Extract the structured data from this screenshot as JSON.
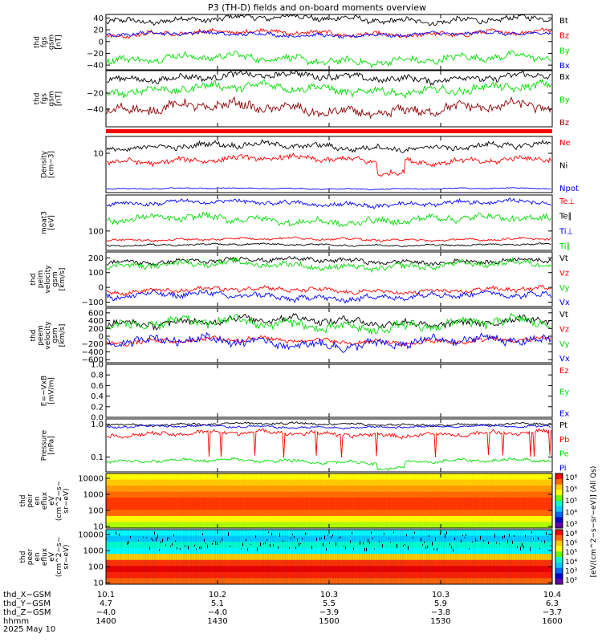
{
  "title": "P3 (TH-D) fields and on-board moments overview",
  "colors": {
    "black": "#000000",
    "red": "#ff0000",
    "green": "#00dd00",
    "blue": "#0000ff",
    "darkred": "#8b0000"
  },
  "chart_data": [
    {
      "type": "line",
      "ylabel": [
        "thd",
        "fgs",
        "gsm",
        "[nT]"
      ],
      "ylim": [
        -48,
        46
      ],
      "ticks": [
        "40",
        "20",
        "0",
        "−20",
        "−40"
      ],
      "tick_values": [
        40,
        20,
        0,
        -20,
        -40
      ],
      "series": [
        {
          "name": "Bt",
          "color": "#000000",
          "level": 38,
          "noise": 5
        },
        {
          "name": "Bz",
          "color": "#ff0000",
          "level": 14,
          "noise": 4
        },
        {
          "name": "By",
          "color": "#00dd00",
          "level": -30,
          "noise": 6
        },
        {
          "name": "Bx",
          "color": "#0000ff",
          "level": 12,
          "noise": 3
        }
      ]
    },
    {
      "type": "line",
      "ylabel": [
        "thd",
        "fgs",
        "gsm",
        "[nT]"
      ],
      "ylim": [
        -62,
        8
      ],
      "ticks": [
        "−20",
        "−40"
      ],
      "tick_values": [
        -20,
        -40
      ],
      "series": [
        {
          "name": "Bx",
          "color": "#000000",
          "level": 0,
          "noise": 4
        },
        {
          "name": "By",
          "color": "#00dd00",
          "level": -15,
          "noise": 5
        },
        {
          "name": "Bz",
          "color": "#8b0000",
          "level": -40,
          "noise": 6
        }
      ]
    },
    {
      "type": "line",
      "ylabel": [
        "Density",
        "[cm−3]"
      ],
      "ylim": [
        0,
        1
      ],
      "ticks": [
        "10"
      ],
      "tick_values": [
        0.7
      ],
      "series": [
        {
          "name": "Ne",
          "color": "#ff0000",
          "level": 0.58,
          "noise": 0.05
        },
        {
          "name": "Ni",
          "color": "#000000",
          "level": 0.82,
          "noise": 0.05
        },
        {
          "name": "Npot",
          "color": "#0000ff",
          "level": 0.07,
          "noise": 0.01
        }
      ]
    },
    {
      "type": "line",
      "ylabel": [
        "moat3",
        "[eV]"
      ],
      "ylim": [
        0,
        1
      ],
      "ticks": [
        "100"
      ],
      "tick_values": [
        0.35
      ],
      "series": [
        {
          "name": "Te⊥",
          "color": "#ff0000",
          "level": 0.2,
          "noise": 0.02
        },
        {
          "name": "Te∥",
          "color": "#000000",
          "level": 0.1,
          "noise": 0.015
        },
        {
          "name": "Ti⊥",
          "color": "#0000ff",
          "level": 0.85,
          "noise": 0.04
        },
        {
          "name": "Ti∥",
          "color": "#00dd00",
          "level": 0.55,
          "noise": 0.06
        }
      ]
    },
    {
      "type": "line",
      "ylabel": [
        "thd",
        "peim",
        "velocity",
        "gsm",
        "[km/s]"
      ],
      "ylim": [
        -130,
        240
      ],
      "ticks": [
        "200",
        "100",
        "0",
        "−100"
      ],
      "tick_values": [
        200,
        100,
        0,
        -100
      ],
      "series": [
        {
          "name": "Vt",
          "color": "#000000",
          "level": 180,
          "noise": 15
        },
        {
          "name": "Vz",
          "color": "#ff0000",
          "level": -20,
          "noise": 15
        },
        {
          "name": "Vy",
          "color": "#00dd00",
          "level": 150,
          "noise": 20
        },
        {
          "name": "Vx",
          "color": "#0000ff",
          "level": -60,
          "noise": 20
        }
      ]
    },
    {
      "type": "line",
      "ylabel": [
        "thd",
        "peem",
        "velocity",
        "gsm",
        "[km/s]"
      ],
      "ylim": [
        -680,
        720
      ],
      "ticks": [
        "600",
        "400",
        "200",
        "0",
        "−200",
        "−400",
        "−600"
      ],
      "tick_values": [
        600,
        400,
        200,
        0,
        -200,
        -400,
        -600
      ],
      "series": [
        {
          "name": "Vt",
          "color": "#000000",
          "level": 380,
          "noise": 90
        },
        {
          "name": "Vz",
          "color": "#ff0000",
          "level": -120,
          "noise": 60
        },
        {
          "name": "Vy",
          "color": "#00dd00",
          "level": 300,
          "noise": 120
        },
        {
          "name": "Vx",
          "color": "#0000ff",
          "level": -160,
          "noise": 110
        }
      ]
    },
    {
      "type": "line",
      "ylabel": [
        "E=−VxB",
        "[mV/m]"
      ],
      "ylim": [
        0,
        1
      ],
      "ticks": [
        "1.0",
        "0.8",
        "0.6",
        "0.4",
        "0.2",
        "0.0"
      ],
      "tick_values": [
        1.0,
        0.8,
        0.6,
        0.4,
        0.2,
        0.0
      ],
      "series": [
        {
          "name": "Ez",
          "color": "#ff0000"
        },
        {
          "name": "Ey",
          "color": "#00dd00"
        },
        {
          "name": "Ex",
          "color": "#0000ff"
        }
      ]
    },
    {
      "type": "line",
      "ylabel": [
        "Pressure",
        "[nPa]"
      ],
      "ylim": [
        0,
        1
      ],
      "ticks": [
        "1.0",
        "0.1"
      ],
      "tick_values": [
        0.9,
        0.28
      ],
      "series": [
        {
          "name": "Pt",
          "color": "#000000",
          "level": 0.9,
          "noise": 0.02
        },
        {
          "name": "Pb",
          "color": "#ff0000",
          "level": 0.72,
          "noise": 0.04
        },
        {
          "name": "Pe",
          "color": "#00dd00",
          "level": 0.2,
          "noise": 0.03
        },
        {
          "name": "Pi",
          "color": "#0000ff",
          "level": 0.85,
          "noise": 0.02
        }
      ]
    },
    {
      "type": "heatmap",
      "ylabel": [
        "thd",
        "peir",
        "en",
        "eflux",
        "eV",
        "(cm^2−s−",
        "sr−eV)"
      ],
      "ticks": [
        "10000",
        "1000",
        "100",
        "10"
      ],
      "tick_values": [
        10000,
        1000,
        100,
        10
      ],
      "colorbar_ticks": [
        "10⁸",
        "10⁶",
        "10⁵",
        "10⁴",
        "10³"
      ],
      "colorbar_label": "[eV/(cm^2−s−sr−eV)] (All Qs)"
    },
    {
      "type": "heatmap",
      "ylabel": [
        "thd",
        "peer",
        "en",
        "eflux",
        "eV",
        "(cm^2−s−",
        "sr−eV)"
      ],
      "ticks": [
        "10000",
        "1000",
        "100",
        "10"
      ],
      "tick_values": [
        10000,
        1000,
        100,
        10
      ],
      "colorbar_ticks": [
        "10⁸",
        "10⁶",
        "10⁵",
        "10⁴",
        "10³",
        "10²"
      ]
    }
  ],
  "xaxis": {
    "rows": [
      {
        "label": "thd_X−GSM",
        "values": [
          "10.1",
          "10.2",
          "10.3",
          "10.3",
          "10.4"
        ]
      },
      {
        "label": "thd_Y−GSM",
        "values": [
          "4.7",
          "5.1",
          "5.5",
          "5.9",
          "6.3"
        ]
      },
      {
        "label": "thd_Z−GSM",
        "values": [
          "−4.0",
          "−4.0",
          "−3.9",
          "−3.8",
          "−3.7"
        ]
      },
      {
        "label": "hhmm",
        "values": [
          "1400",
          "1430",
          "1500",
          "1530",
          "1600"
        ]
      }
    ],
    "date": "2025 May 10"
  }
}
